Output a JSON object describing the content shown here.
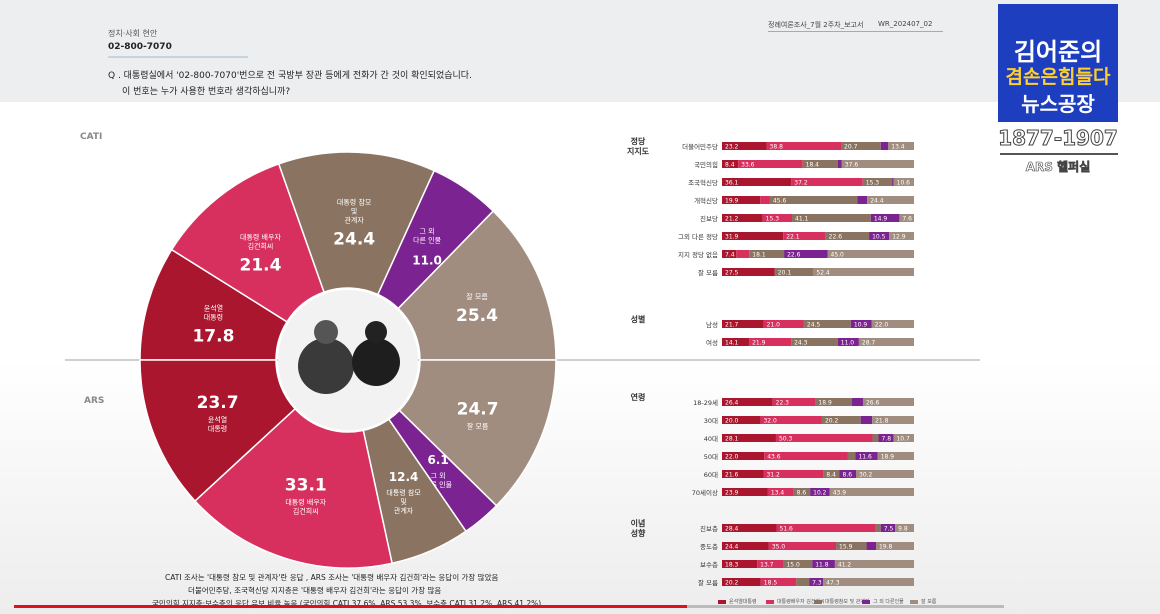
{
  "header": {
    "section_label": "정치·사회 현안",
    "title": "02-800-7070",
    "report_name": "정례여론조사_7월 2주차_보고서",
    "report_code": "WR_202407_02",
    "question_line1": "Q . 대통령실에서 '02-800-7070'번으로 전 국방부 장관 등에게 전화가 간 것이 확인되었습니다.",
    "question_line2": "이 번호는 누가 사용한 번호라 생각하십니까?"
  },
  "logo": {
    "line1": "김어준의",
    "line2": "겸손은힘들다",
    "line3": "뉴스공장",
    "phone": "1877-1907",
    "sub": "ARS 헬퍼실"
  },
  "colors": {
    "dark_red": "#a9162d",
    "pink": "#d8305e",
    "brown": "#8a7461",
    "purple": "#7b2390",
    "light_brown": "#a18d7f"
  },
  "labels": {
    "cati": "CATI",
    "ars": "ARS"
  },
  "chart_data": [
    {
      "type": "pie",
      "name": "CATI",
      "slices": [
        {
          "label": "대통령 참모 및 관계자",
          "value": 24.4,
          "color": "#8a7461"
        },
        {
          "label": "그 외 다른 인물",
          "value": 11.0,
          "color": "#7b2390"
        },
        {
          "label": "잘 모름",
          "value": 25.4,
          "color": "#a18d7f"
        },
        {
          "label": "윤석열 대통령",
          "value": 17.8,
          "color": "#a9162d"
        },
        {
          "label": "대통령 배우자 김건희씨",
          "value": 21.4,
          "color": "#d8305e"
        }
      ]
    },
    {
      "type": "pie",
      "name": "ARS",
      "slices": [
        {
          "label": "잘 모름",
          "value": 24.7,
          "color": "#a18d7f"
        },
        {
          "label": "그 외 다른 인물",
          "value": 6.1,
          "color": "#7b2390"
        },
        {
          "label": "대통령 참모 및 관계자",
          "value": 12.4,
          "color": "#8a7461"
        },
        {
          "label": "대통령 배우자 김건희씨",
          "value": 33.1,
          "color": "#d8305e"
        },
        {
          "label": "윤석열 대통령",
          "value": 23.7,
          "color": "#a9162d"
        }
      ]
    },
    {
      "type": "bar",
      "stacked": true,
      "orientation": "horizontal",
      "series": [
        {
          "name": "윤석열대통령",
          "color": "#a9162d"
        },
        {
          "name": "대통령배우자 김건희씨",
          "color": "#d8305e"
        },
        {
          "name": "대통령참모 및 관계자",
          "color": "#8a7461"
        },
        {
          "name": "그 외 다른인물",
          "color": "#7b2390"
        },
        {
          "name": "잘 모름",
          "color": "#a18d7f"
        }
      ],
      "groups": [
        {
          "name": "정당 지지도",
          "rows": [
            {
              "label": "더불어민주당",
              "values": [
                23.2,
                38.8,
                20.7,
                3.9,
                13.4
              ]
            },
            {
              "label": "국민의힘",
              "values": [
                8.4,
                33.6,
                18.4,
                2.0,
                37.6
              ]
            },
            {
              "label": "조국혁신당",
              "values": [
                36.1,
                37.2,
                15.3,
                0.8,
                10.6
              ]
            },
            {
              "label": "개혁신당",
              "values": [
                19.9,
                5.1,
                45.6,
                5.1,
                24.4
              ]
            },
            {
              "label": "진보당",
              "values": [
                21.2,
                15.3,
                41.1,
                14.9,
                7.6
              ]
            },
            {
              "label": "그외 다른 정당",
              "values": [
                31.9,
                22.1,
                22.6,
                10.5,
                12.9
              ]
            },
            {
              "label": "지지 정당 없음",
              "values": [
                7.4,
                6.8,
                18.1,
                22.6,
                45.0
              ]
            },
            {
              "label": "잘 모름",
              "values": [
                27.5,
                0,
                20.1,
                0,
                52.4
              ]
            }
          ]
        },
        {
          "name": "성별",
          "rows": [
            {
              "label": "남성",
              "values": [
                21.7,
                21.0,
                24.5,
                10.9,
                22.0
              ]
            },
            {
              "label": "여성",
              "values": [
                14.1,
                21.9,
                24.3,
                11.0,
                28.7
              ]
            }
          ]
        },
        {
          "name": "연령",
          "rows": [
            {
              "label": "18-29세",
              "values": [
                26.4,
                22.3,
                18.9,
                5.9,
                26.6
              ]
            },
            {
              "label": "30대",
              "values": [
                20.0,
                32.0,
                20.2,
                5.9,
                21.8
              ]
            },
            {
              "label": "40대",
              "values": [
                28.1,
                50.3,
                3.1,
                7.8,
                10.7
              ]
            },
            {
              "label": "50대",
              "values": [
                22.0,
                43.6,
                3.9,
                11.6,
                18.9
              ]
            },
            {
              "label": "60대",
              "values": [
                21.6,
                31.2,
                8.4,
                8.6,
                30.2
              ]
            },
            {
              "label": "70세이상",
              "values": [
                23.9,
                13.4,
                8.6,
                10.2,
                43.9
              ]
            }
          ]
        },
        {
          "name": "이념 성향",
          "rows": [
            {
              "label": "진보층",
              "values": [
                28.4,
                51.6,
                2.7,
                7.5,
                9.8
              ]
            },
            {
              "label": "중도층",
              "values": [
                24.4,
                35.0,
                15.9,
                4.9,
                19.8
              ]
            },
            {
              "label": "보수층",
              "values": [
                18.3,
                13.7,
                15.0,
                11.8,
                41.2
              ]
            },
            {
              "label": "잘 모름",
              "values": [
                20.2,
                18.5,
                6.7,
                7.3,
                47.3
              ]
            }
          ]
        }
      ]
    }
  ],
  "notes": {
    "line1": "CATI 조사는 '대통령 참모 및 관계자'란 응답 , ARS 조사는 '대통령 배우자 김건희'라는 응답이 가장 많았음",
    "line2": "더불어민주당, 조국혁신당 지지층은 '대통령 배우자 김건희'라는 응답이 가장 많음",
    "line3": "국민의힘 지지층·보수층의 응답 유보 비율 높음 (국민의힘 CATI 37.6%, ARS 53.3%, 보수층 CATI 31.2%, ARS 41.2%)"
  },
  "video": {
    "progress": 0.68
  }
}
